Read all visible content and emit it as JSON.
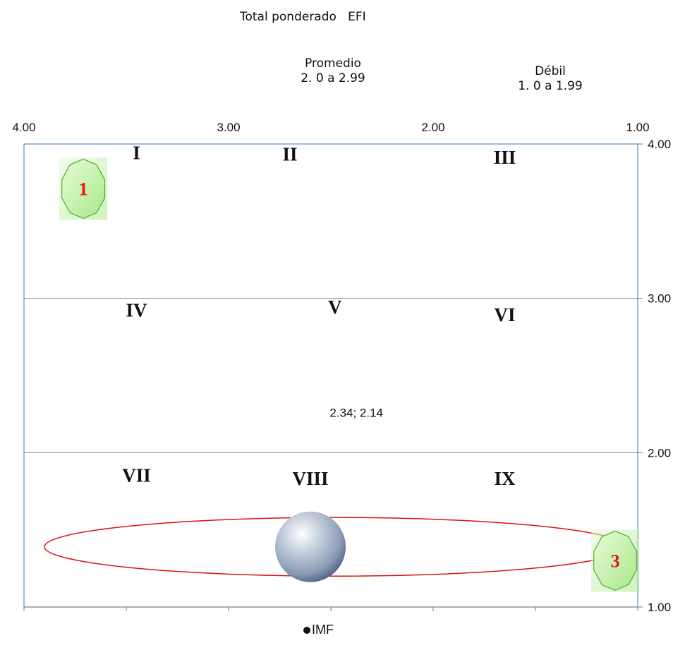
{
  "title": "Total ponderado   EFI",
  "column_headers": [
    {
      "line1": "Promedio",
      "line2": "2. 0 a 2.99"
    },
    {
      "line1": "Débil",
      "line2": "1. 0 a 1.99"
    }
  ],
  "colors": {
    "frame": "#5b8fd0",
    "divider": "#888888",
    "ellipse": "#dd1111",
    "badge_fill": "#c8f0b0",
    "badge_stroke": "#55aa33",
    "badge_text": "#ee1111",
    "sphere": "#8ea2bd"
  },
  "chart_data": {
    "type": "scatter",
    "title": "Total ponderado   EFI",
    "x_axis": {
      "range": [
        4.0,
        1.0
      ],
      "reversed": true,
      "tick_labels": [
        "4.00",
        "3.00",
        "2.00",
        "1.00"
      ]
    },
    "y_axis": {
      "range": [
        1.0,
        4.0
      ],
      "position": "right",
      "tick_labels": [
        "4.00",
        "3.00",
        "2.00",
        "1.00"
      ]
    },
    "grid_dividers_y": [
      3.0,
      2.0
    ],
    "cells": [
      {
        "label": "I",
        "x": 3.45,
        "y": 3.93
      },
      {
        "label": "II",
        "x": 2.7,
        "y": 3.92
      },
      {
        "label": "III",
        "x": 1.65,
        "y": 3.9
      },
      {
        "label": "IV",
        "x": 3.45,
        "y": 2.91
      },
      {
        "label": "V",
        "x": 2.48,
        "y": 2.93
      },
      {
        "label": "VI",
        "x": 1.65,
        "y": 2.88
      },
      {
        "label": "VII",
        "x": 3.45,
        "y": 1.84
      },
      {
        "label": "VIII",
        "x": 2.6,
        "y": 1.82
      },
      {
        "label": "IX",
        "x": 1.65,
        "y": 1.82
      }
    ],
    "series": [
      {
        "name": "IMF",
        "points": [
          {
            "x": 2.34,
            "y": 2.14
          }
        ]
      }
    ],
    "point_label": "2.34; 2.14",
    "highlight_ellipse": {
      "x_range": [
        3.9,
        1.06
      ],
      "y_center": 1.39,
      "y_halfspan": 0.19
    },
    "badges": [
      {
        "label": "1",
        "x": 3.71,
        "y": 3.71
      },
      {
        "label": "3",
        "x": 1.11,
        "y": 1.3
      }
    ],
    "legend": {
      "entries": [
        "IMF"
      ],
      "position": "bottom"
    }
  }
}
